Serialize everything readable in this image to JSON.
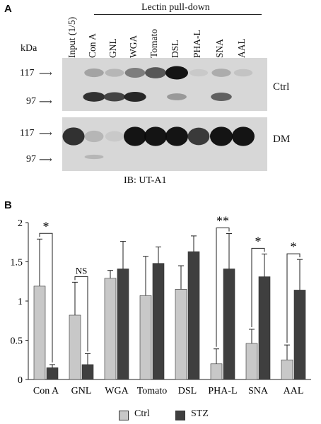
{
  "panel_a": {
    "letter": "A",
    "header": "Lectin pull-down",
    "kda": "kDa",
    "lanes": [
      "Input (1/5)",
      "Con A",
      "GNL",
      "WGA",
      "Tomato",
      "DSL",
      "PHA-L",
      "SNA",
      "AAL"
    ],
    "markers": [
      "117",
      "97"
    ],
    "rows": [
      "Ctrl",
      "DM"
    ],
    "ib": "IB: UT-A1",
    "bands_ctrl_upper": [
      0,
      0.25,
      0.15,
      0.45,
      0.65,
      1.0,
      0.05,
      0.2,
      0.08
    ],
    "bands_ctrl_lower": [
      0,
      0.85,
      0.75,
      0.9,
      0,
      0.3,
      0,
      0.6,
      0
    ],
    "bands_dm_upper": [
      0.85,
      0.15,
      0.05,
      1.0,
      1.0,
      1.0,
      0.8,
      1.0,
      1.0
    ],
    "bands_dm_lower": [
      0,
      0.15,
      0,
      0,
      0,
      0,
      0,
      0,
      0
    ]
  },
  "panel_b": {
    "letter": "B",
    "legend": {
      "ctrl": "Ctrl",
      "stz": "STZ"
    },
    "colors": {
      "ctrl": "#c8c8c8",
      "stz": "#3f3f3f"
    }
  },
  "chart_data": {
    "type": "bar",
    "categories": [
      "Con A",
      "GNL",
      "WGA",
      "Tomato",
      "DSL",
      "PHA-L",
      "SNA",
      "AAL"
    ],
    "series": [
      {
        "name": "Ctrl",
        "values": [
          1.19,
          0.82,
          1.29,
          1.07,
          1.15,
          0.2,
          0.46,
          0.25
        ],
        "errors": [
          0.6,
          0.42,
          0.1,
          0.5,
          0.3,
          0.19,
          0.18,
          0.19
        ]
      },
      {
        "name": "STZ",
        "values": [
          0.15,
          0.19,
          1.41,
          1.48,
          1.63,
          1.41,
          1.31,
          1.14
        ],
        "errors": [
          0.04,
          0.14,
          0.35,
          0.21,
          0.2,
          0.45,
          0.29,
          0.39
        ]
      }
    ],
    "significance": [
      "*",
      "NS",
      "",
      "",
      "",
      "**",
      "*",
      "*"
    ],
    "ylim": [
      0,
      2
    ],
    "yticks": [
      "0",
      "0.5",
      "1",
      "1.5",
      "2"
    ],
    "xlabel": "",
    "ylabel": ""
  }
}
